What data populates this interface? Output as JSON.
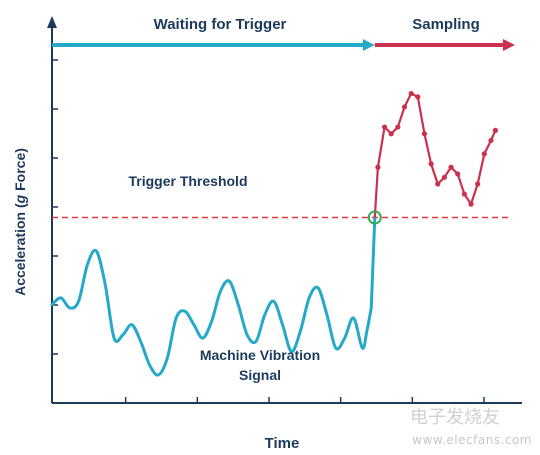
{
  "chart_data": {
    "type": "line",
    "xlabel": "Time",
    "ylabel": "Acceleration (g Force)",
    "ylabel_parts": {
      "prefix": "Acceleration (",
      "italic": "g",
      "suffix": " Force)"
    },
    "grid": false,
    "threshold": {
      "label": "Trigger Threshold",
      "value": 5.0,
      "color": "#e23b3b"
    },
    "phases": [
      {
        "label": "Waiting for Trigger",
        "color": "#25a9c9"
      },
      {
        "label": "Sampling",
        "color": "#c9314f"
      }
    ],
    "annotations": [
      {
        "text_lines": [
          "Machine Vibration",
          "Signal"
        ]
      }
    ],
    "trigger_marker": {
      "x": 7.28,
      "y": 5.0,
      "color": "#3aa85a"
    },
    "series": [
      {
        "color": "#25a9c9",
        "x": [
          0.0,
          0.2,
          0.4,
          0.6,
          0.8,
          1.0,
          1.2,
          1.4,
          1.6,
          1.8,
          2.0,
          2.2,
          2.4,
          2.6,
          2.8,
          3.0,
          3.2,
          3.4,
          3.6,
          3.8,
          4.0,
          4.2,
          4.4,
          4.6,
          4.8,
          5.0,
          5.2,
          5.4,
          5.6,
          5.8,
          6.0,
          6.2,
          6.4,
          6.6,
          6.8,
          7.0,
          7.1,
          7.2,
          7.28
        ],
        "y": [
          2.4,
          2.6,
          2.3,
          2.5,
          3.6,
          4.0,
          3.0,
          1.4,
          1.5,
          1.8,
          1.3,
          0.6,
          0.3,
          0.8,
          2.0,
          2.2,
          1.8,
          1.4,
          1.9,
          2.8,
          3.1,
          2.4,
          1.5,
          1.3,
          2.1,
          2.5,
          1.8,
          1.0,
          1.6,
          2.6,
          2.9,
          2.1,
          1.1,
          1.4,
          2.0,
          1.1,
          1.6,
          2.3,
          5.0
        ]
      },
      {
        "color": "#c9314f",
        "x": [
          7.28,
          7.35,
          7.5,
          7.65,
          7.8,
          7.95,
          8.1,
          8.25,
          8.4,
          8.55,
          8.7,
          8.85,
          9.0,
          9.15,
          9.3,
          9.45,
          9.6,
          9.75,
          9.9,
          10.0
        ],
        "y": [
          5.0,
          6.5,
          7.7,
          7.5,
          7.7,
          8.3,
          8.7,
          8.6,
          7.5,
          6.6,
          6.0,
          6.2,
          6.5,
          6.3,
          5.7,
          5.4,
          6.0,
          6.9,
          7.3,
          7.6
        ]
      }
    ],
    "xlim": [
      0,
      10.6
    ],
    "ylim": [
      0,
      10
    ]
  },
  "watermark": {
    "cn": "电子发烧友",
    "url": "www.elecfans.com"
  }
}
